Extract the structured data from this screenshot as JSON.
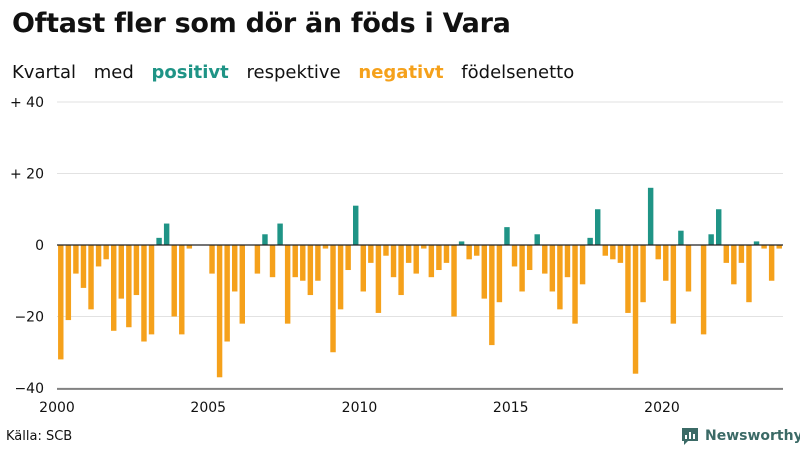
{
  "title": "Oftast fler som dör än föds i Vara",
  "subtitle": {
    "part1": "Kvartal",
    "part2": "med",
    "positive_word": "positivt",
    "part3": "respektive",
    "negative_word": "negativt",
    "part4": "födelsenetto"
  },
  "source": "Källa: SCB",
  "brand": "Newsworthy",
  "colors": {
    "positive": "#1f9486",
    "negative": "#f5a11b",
    "grid": "#e2e2e2",
    "zero": "#222222",
    "brand": "#3b6a66"
  },
  "chart_data": {
    "type": "bar",
    "title": "Oftast fler som dör än föds i Vara",
    "xlabel": "",
    "ylabel": "",
    "ylim": [
      -40,
      40
    ],
    "y_ticks": [
      {
        "value": 40,
        "label": "+ 40"
      },
      {
        "value": 20,
        "label": "+ 20"
      },
      {
        "value": 0,
        "label": "0"
      },
      {
        "value": -20,
        "label": "−20"
      },
      {
        "value": -40,
        "label": "−40"
      }
    ],
    "x_ticks": [
      "2000",
      "2005",
      "2010",
      "2015",
      "2020"
    ],
    "start_year": 2000,
    "quarters_per_year": 4,
    "values": [
      -32,
      -21,
      -8,
      -12,
      -18,
      -6,
      -4,
      -24,
      -15,
      -23,
      -14,
      -27,
      -25,
      2,
      6,
      -20,
      -25,
      -1,
      0,
      0,
      -8,
      -37,
      -27,
      -13,
      -22,
      0,
      -8,
      3,
      -9,
      6,
      -22,
      -9,
      -10,
      -14,
      -10,
      -1,
      -30,
      -18,
      -7,
      11,
      -13,
      -5,
      -19,
      -3,
      -9,
      -14,
      -5,
      -8,
      -1,
      -9,
      -7,
      -5,
      -20,
      1,
      -4,
      -3,
      -15,
      -28,
      -16,
      5,
      -6,
      -13,
      -7,
      3,
      -8,
      -13,
      -18,
      -9,
      -22,
      -11,
      2,
      10,
      -3,
      -4,
      -5,
      -19,
      -36,
      -16,
      16,
      -4,
      -10,
      -22,
      4,
      -13,
      0,
      -25,
      3,
      10,
      -5,
      -11,
      -5,
      -16,
      1,
      -1,
      -10,
      -1
    ]
  }
}
